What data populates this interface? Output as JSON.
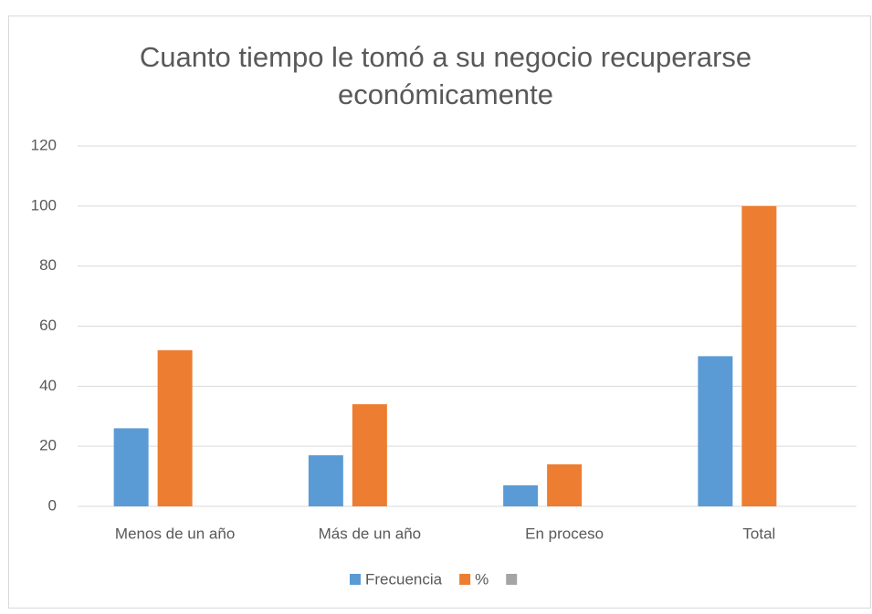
{
  "chart_data": {
    "type": "bar",
    "title": [
      "Cuanto tiempo le tomó a su negocio recuperarse",
      "económicamente"
    ],
    "categories": [
      "Menos de un año",
      "Más de un año",
      "En proceso",
      "Total"
    ],
    "series": [
      {
        "name": "Frecuencia",
        "color": "#5b9bd5",
        "values": [
          26,
          17,
          7,
          50
        ]
      },
      {
        "name": "%",
        "color": "#ed7d31",
        "values": [
          52,
          34,
          14,
          100
        ]
      },
      {
        "name": null,
        "color": "#a5a5a5",
        "values": [
          null,
          null,
          null,
          null
        ]
      }
    ],
    "ylim": [
      0,
      120
    ],
    "yticks": [
      0,
      20,
      40,
      60,
      80,
      100,
      120
    ],
    "grid": true,
    "legend": "bottom"
  }
}
